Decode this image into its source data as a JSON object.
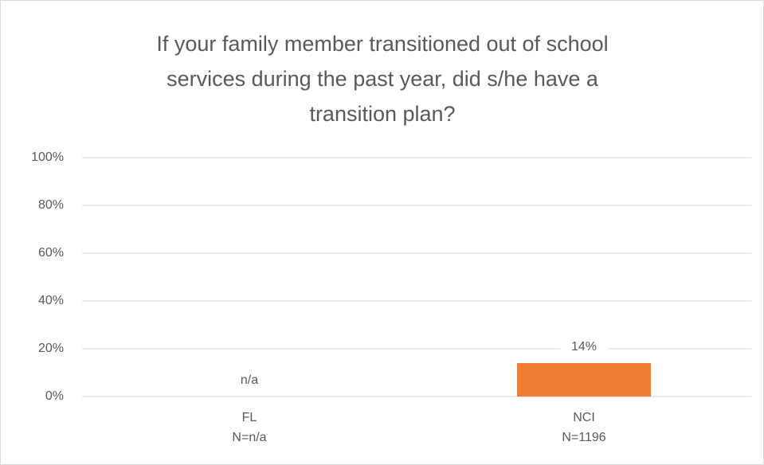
{
  "chart_data": {
    "type": "bar",
    "title": [
      "If your family member transitioned out of school",
      "services during the past year, did s/he have a",
      "transition plan?"
    ],
    "categories": [
      [
        "FL",
        "N=n/a"
      ],
      [
        "NCI",
        "N=1196"
      ]
    ],
    "values": [
      null,
      14
    ],
    "value_labels": [
      "n/a",
      "14%"
    ],
    "color": "#ed7d31",
    "ylim": [
      0,
      100
    ],
    "yticks": [
      {
        "value": 0,
        "label": "0%"
      },
      {
        "value": 20,
        "label": "20%"
      },
      {
        "value": 40,
        "label": "40%"
      },
      {
        "value": 60,
        "label": "60%"
      },
      {
        "value": 80,
        "label": "80%"
      },
      {
        "value": 100,
        "label": "100%"
      }
    ],
    "grid": true
  }
}
